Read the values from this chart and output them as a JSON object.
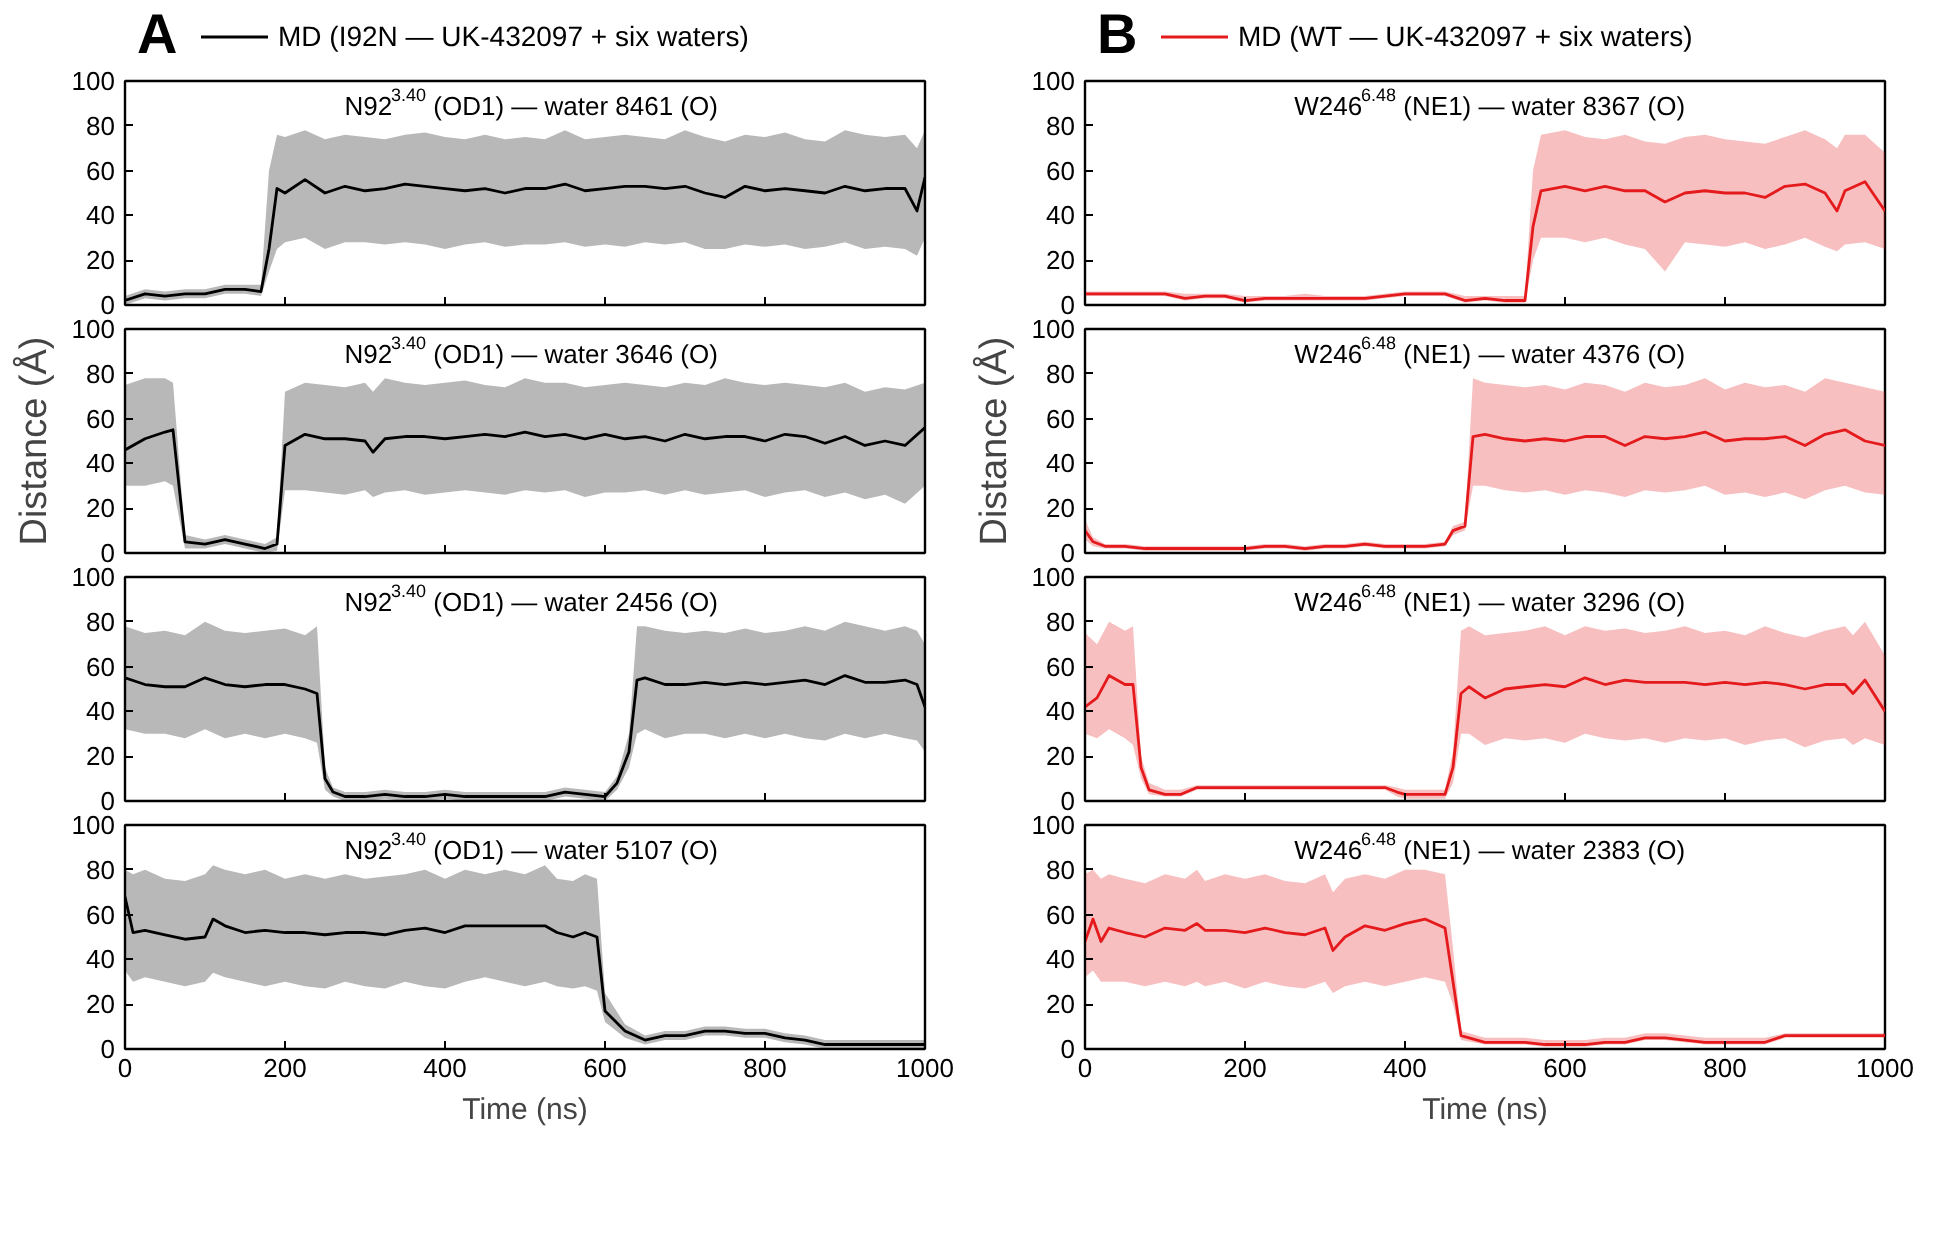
{
  "chart_data": [
    {
      "type": "line",
      "title": "N92$^{3.40}$ (OD1) — water 8461 (O)",
      "annotations": [
        "A"
      ],
      "legend": "top",
      "xlim": [
        0,
        1000
      ],
      "ylim": [
        0,
        100
      ],
      "xticks": [
        0,
        200,
        400,
        600,
        800,
        1000
      ],
      "yticks": [
        0,
        20,
        40,
        60,
        80,
        100
      ],
      "tick_labels": "y",
      "series": [
        {
          "name": "MD (I92N — UK-432097 + six waters)",
          "color": "#000000",
          "x": [
            0,
            25,
            50,
            75,
            100,
            125,
            150,
            170,
            180,
            190,
            200,
            225,
            250,
            275,
            300,
            325,
            350,
            375,
            400,
            425,
            450,
            475,
            500,
            525,
            550,
            575,
            600,
            625,
            650,
            675,
            700,
            725,
            750,
            775,
            800,
            825,
            850,
            875,
            900,
            925,
            950,
            975,
            990,
            1000
          ],
          "values": [
            2,
            5,
            4,
            5,
            5,
            7,
            7,
            6,
            25,
            52,
            50,
            56,
            50,
            53,
            51,
            52,
            54,
            53,
            52,
            51,
            52,
            50,
            52,
            52,
            54,
            51,
            52,
            53,
            53,
            52,
            53,
            50,
            48,
            53,
            51,
            52,
            51,
            50,
            53,
            51,
            52,
            52,
            42,
            57
          ],
          "lower": [
            0,
            3,
            2,
            3,
            3,
            5,
            5,
            4,
            15,
            25,
            28,
            30,
            25,
            28,
            28,
            27,
            28,
            27,
            25,
            27,
            28,
            26,
            27,
            27,
            28,
            26,
            27,
            26,
            28,
            27,
            28,
            25,
            25,
            27,
            26,
            27,
            25,
            26,
            28,
            25,
            26,
            25,
            22,
            30
          ],
          "upper": [
            4,
            7,
            6,
            7,
            7,
            9,
            9,
            9,
            60,
            76,
            75,
            78,
            74,
            76,
            75,
            74,
            76,
            77,
            75,
            74,
            76,
            74,
            75,
            74,
            78,
            74,
            75,
            76,
            75,
            74,
            78,
            75,
            73,
            76,
            75,
            77,
            74,
            73,
            78,
            76,
            75,
            76,
            70,
            78
          ]
        }
      ]
    },
    {
      "type": "line",
      "title": "N92$^{3.40}$ (OD1) — water 3646 (O)",
      "ylabel": "Distance (Å)",
      "xlim": [
        0,
        1000
      ],
      "ylim": [
        0,
        100
      ],
      "xticks": [
        0,
        200,
        400,
        600,
        800,
        1000
      ],
      "yticks": [
        0,
        20,
        40,
        60,
        80,
        100
      ],
      "tick_labels": "y",
      "series": [
        {
          "color": "#000000",
          "x": [
            0,
            25,
            50,
            60,
            75,
            100,
            125,
            150,
            175,
            190,
            200,
            225,
            250,
            275,
            300,
            310,
            325,
            350,
            375,
            400,
            425,
            450,
            475,
            500,
            525,
            550,
            575,
            600,
            625,
            650,
            675,
            700,
            725,
            750,
            775,
            800,
            825,
            850,
            875,
            900,
            925,
            950,
            975,
            1000
          ],
          "values": [
            46,
            51,
            54,
            55,
            5,
            4,
            6,
            4,
            2,
            4,
            48,
            53,
            51,
            51,
            50,
            45,
            51,
            52,
            52,
            51,
            52,
            53,
            52,
            54,
            52,
            53,
            51,
            53,
            51,
            52,
            50,
            53,
            51,
            52,
            52,
            50,
            53,
            52,
            49,
            52,
            48,
            50,
            48,
            56
          ],
          "lower": [
            30,
            30,
            32,
            30,
            2,
            2,
            4,
            2,
            0,
            1,
            28,
            28,
            27,
            26,
            28,
            25,
            27,
            28,
            26,
            27,
            28,
            27,
            26,
            28,
            27,
            28,
            25,
            27,
            27,
            28,
            26,
            28,
            26,
            27,
            28,
            25,
            27,
            28,
            25,
            27,
            24,
            26,
            22,
            30
          ],
          "upper": [
            75,
            78,
            78,
            76,
            8,
            6,
            8,
            6,
            4,
            7,
            72,
            76,
            75,
            74,
            76,
            72,
            78,
            76,
            75,
            76,
            77,
            75,
            74,
            78,
            76,
            76,
            74,
            75,
            76,
            75,
            74,
            76,
            75,
            78,
            76,
            75,
            76,
            75,
            74,
            76,
            72,
            74,
            73,
            76
          ]
        }
      ]
    },
    {
      "type": "line",
      "title": "N92$^{3.40}$ (OD1) — water 2456 (O)",
      "xlim": [
        0,
        1000
      ],
      "ylim": [
        0,
        100
      ],
      "xticks": [
        0,
        200,
        400,
        600,
        800,
        1000
      ],
      "yticks": [
        0,
        20,
        40,
        60,
        80,
        100
      ],
      "tick_labels": "y",
      "series": [
        {
          "color": "#000000",
          "x": [
            0,
            25,
            50,
            75,
            100,
            125,
            150,
            175,
            200,
            225,
            240,
            250,
            260,
            275,
            300,
            325,
            350,
            375,
            400,
            425,
            450,
            475,
            500,
            525,
            550,
            575,
            600,
            615,
            630,
            640,
            650,
            675,
            700,
            725,
            750,
            775,
            800,
            825,
            850,
            875,
            900,
            925,
            950,
            975,
            990,
            1000
          ],
          "values": [
            55,
            52,
            51,
            51,
            55,
            52,
            51,
            52,
            52,
            50,
            48,
            10,
            4,
            2,
            2,
            3,
            2,
            2,
            3,
            2,
            2,
            2,
            2,
            2,
            4,
            3,
            2,
            8,
            22,
            54,
            55,
            52,
            52,
            53,
            52,
            53,
            52,
            53,
            54,
            52,
            56,
            53,
            53,
            54,
            52,
            42
          ],
          "lower": [
            32,
            30,
            30,
            28,
            32,
            28,
            30,
            28,
            30,
            28,
            26,
            5,
            2,
            0,
            0,
            1,
            0,
            0,
            1,
            0,
            0,
            0,
            0,
            0,
            2,
            1,
            0,
            5,
            15,
            30,
            32,
            28,
            30,
            30,
            28,
            30,
            28,
            30,
            28,
            27,
            30,
            28,
            30,
            28,
            27,
            22
          ],
          "upper": [
            78,
            75,
            76,
            74,
            80,
            76,
            75,
            76,
            77,
            74,
            78,
            15,
            6,
            4,
            4,
            5,
            4,
            4,
            5,
            4,
            4,
            4,
            4,
            4,
            6,
            5,
            4,
            11,
            30,
            78,
            78,
            76,
            75,
            76,
            75,
            77,
            75,
            76,
            78,
            76,
            80,
            78,
            76,
            78,
            76,
            70
          ]
        }
      ]
    },
    {
      "type": "line",
      "title": "N92$^{3.40}$ (OD1) — water 5107 (O)",
      "xlabel": "Time (ns)",
      "xlim": [
        0,
        1000
      ],
      "ylim": [
        0,
        100
      ],
      "xticks": [
        0,
        200,
        400,
        600,
        800,
        1000
      ],
      "yticks": [
        0,
        20,
        40,
        60,
        80,
        100
      ],
      "series": [
        {
          "color": "#000000",
          "x": [
            0,
            10,
            25,
            50,
            75,
            100,
            110,
            125,
            150,
            175,
            200,
            225,
            250,
            275,
            300,
            325,
            350,
            375,
            400,
            425,
            450,
            475,
            500,
            525,
            540,
            560,
            575,
            590,
            600,
            625,
            650,
            675,
            700,
            725,
            750,
            775,
            800,
            825,
            850,
            875,
            900,
            925,
            950,
            975,
            1000
          ],
          "values": [
            68,
            52,
            53,
            51,
            49,
            50,
            58,
            55,
            52,
            53,
            52,
            52,
            51,
            52,
            52,
            51,
            53,
            54,
            52,
            55,
            55,
            55,
            55,
            55,
            52,
            50,
            52,
            50,
            17,
            8,
            4,
            6,
            6,
            8,
            8,
            7,
            7,
            5,
            4,
            2,
            2,
            2,
            2,
            2,
            2
          ],
          "lower": [
            35,
            30,
            32,
            30,
            28,
            30,
            34,
            32,
            30,
            28,
            30,
            28,
            27,
            30,
            28,
            27,
            30,
            28,
            27,
            30,
            32,
            30,
            28,
            30,
            28,
            27,
            28,
            26,
            12,
            5,
            2,
            4,
            4,
            6,
            6,
            5,
            5,
            3,
            2,
            0,
            0,
            0,
            0,
            0,
            0
          ],
          "upper": [
            80,
            78,
            80,
            76,
            75,
            78,
            82,
            80,
            78,
            80,
            76,
            78,
            76,
            78,
            76,
            77,
            78,
            80,
            76,
            80,
            78,
            80,
            78,
            82,
            76,
            75,
            78,
            76,
            25,
            11,
            6,
            8,
            8,
            10,
            10,
            9,
            9,
            7,
            6,
            4,
            4,
            4,
            4,
            4,
            4
          ]
        }
      ]
    },
    {
      "type": "line",
      "title": "W246$^{6.48}$ (NE1) — water 8367 (O)",
      "annotations": [
        "B"
      ],
      "legend": "top",
      "xlim": [
        0,
        1000
      ],
      "ylim": [
        0,
        100
      ],
      "xticks": [
        0,
        200,
        400,
        600,
        800,
        1000
      ],
      "yticks": [
        0,
        20,
        40,
        60,
        80,
        100
      ],
      "tick_labels": "y",
      "series": [
        {
          "name": "MD (WT — UK-432097 + six waters)",
          "color": "#e41a1c",
          "x": [
            0,
            25,
            50,
            75,
            100,
            125,
            150,
            175,
            200,
            225,
            250,
            275,
            300,
            325,
            350,
            375,
            400,
            425,
            450,
            475,
            500,
            525,
            550,
            560,
            570,
            600,
            625,
            650,
            675,
            700,
            725,
            750,
            775,
            800,
            825,
            850,
            875,
            900,
            925,
            940,
            950,
            975,
            1000
          ],
          "values": [
            5,
            5,
            5,
            5,
            5,
            3,
            4,
            4,
            2,
            3,
            3,
            3,
            3,
            3,
            3,
            4,
            5,
            5,
            5,
            2,
            3,
            2,
            2,
            35,
            51,
            53,
            51,
            53,
            51,
            51,
            46,
            50,
            51,
            50,
            50,
            48,
            53,
            54,
            50,
            42,
            51,
            55,
            42
          ],
          "lower": [
            4,
            4,
            4,
            4,
            4,
            2,
            3,
            3,
            1,
            2,
            2,
            2,
            2,
            2,
            2,
            3,
            4,
            4,
            4,
            1,
            2,
            1,
            1,
            20,
            30,
            30,
            28,
            30,
            27,
            25,
            15,
            28,
            27,
            26,
            28,
            25,
            27,
            30,
            26,
            24,
            27,
            28,
            25
          ],
          "upper": [
            6,
            6,
            6,
            6,
            6,
            5,
            5,
            5,
            4,
            4,
            4,
            5,
            4,
            4,
            4,
            5,
            6,
            6,
            6,
            4,
            4,
            4,
            4,
            60,
            76,
            78,
            75,
            74,
            76,
            73,
            72,
            75,
            76,
            74,
            73,
            72,
            75,
            78,
            74,
            70,
            76,
            76,
            68
          ]
        }
      ]
    },
    {
      "type": "line",
      "title": "W246$^{6.48}$ (NE1) — water 4376 (O)",
      "ylabel": "Distance (Å)",
      "xlim": [
        0,
        1000
      ],
      "ylim": [
        0,
        100
      ],
      "xticks": [
        0,
        200,
        400,
        600,
        800,
        1000
      ],
      "yticks": [
        0,
        20,
        40,
        60,
        80,
        100
      ],
      "tick_labels": "y",
      "series": [
        {
          "color": "#e41a1c",
          "x": [
            0,
            10,
            25,
            50,
            75,
            100,
            125,
            150,
            175,
            200,
            225,
            250,
            275,
            300,
            325,
            350,
            375,
            400,
            425,
            450,
            460,
            475,
            485,
            500,
            525,
            550,
            575,
            600,
            625,
            650,
            675,
            700,
            725,
            750,
            775,
            800,
            825,
            850,
            875,
            900,
            925,
            950,
            975,
            1000
          ],
          "values": [
            10,
            5,
            3,
            3,
            2,
            2,
            2,
            2,
            2,
            2,
            3,
            3,
            2,
            3,
            3,
            4,
            3,
            3,
            3,
            4,
            10,
            12,
            52,
            53,
            51,
            50,
            51,
            50,
            52,
            52,
            48,
            52,
            51,
            52,
            54,
            50,
            51,
            51,
            52,
            48,
            53,
            55,
            50,
            48
          ],
          "lower": [
            6,
            3,
            2,
            2,
            1,
            1,
            1,
            1,
            1,
            1,
            2,
            2,
            1,
            2,
            2,
            3,
            2,
            2,
            2,
            3,
            8,
            10,
            30,
            30,
            28,
            27,
            28,
            26,
            28,
            27,
            25,
            28,
            27,
            28,
            30,
            26,
            27,
            25,
            27,
            24,
            28,
            30,
            27,
            26
          ],
          "upper": [
            15,
            7,
            4,
            4,
            3,
            3,
            3,
            3,
            3,
            3,
            4,
            4,
            3,
            4,
            4,
            5,
            4,
            4,
            4,
            5,
            12,
            14,
            78,
            76,
            75,
            74,
            75,
            73,
            76,
            75,
            72,
            76,
            74,
            75,
            78,
            73,
            76,
            74,
            75,
            72,
            78,
            76,
            74,
            72
          ]
        }
      ]
    },
    {
      "type": "line",
      "title": "W246$^{6.48}$ (NE1) — water 3296 (O)",
      "xlim": [
        0,
        1000
      ],
      "ylim": [
        0,
        100
      ],
      "xticks": [
        0,
        200,
        400,
        600,
        800,
        1000
      ],
      "yticks": [
        0,
        20,
        40,
        60,
        80,
        100
      ],
      "tick_labels": "y",
      "series": [
        {
          "color": "#e41a1c",
          "x": [
            0,
            15,
            30,
            50,
            60,
            70,
            80,
            100,
            120,
            140,
            175,
            200,
            250,
            300,
            350,
            375,
            390,
            400,
            425,
            450,
            460,
            470,
            480,
            500,
            525,
            550,
            575,
            600,
            625,
            650,
            675,
            700,
            725,
            750,
            775,
            800,
            825,
            850,
            875,
            900,
            925,
            950,
            960,
            975,
            1000
          ],
          "values": [
            42,
            46,
            56,
            52,
            52,
            15,
            5,
            3,
            3,
            6,
            6,
            6,
            6,
            6,
            6,
            6,
            4,
            3,
            3,
            3,
            15,
            48,
            51,
            46,
            50,
            51,
            52,
            51,
            55,
            52,
            54,
            53,
            53,
            53,
            52,
            53,
            52,
            53,
            52,
            50,
            52,
            52,
            48,
            54,
            40
          ],
          "lower": [
            30,
            28,
            32,
            28,
            25,
            10,
            3,
            2,
            2,
            5,
            5,
            5,
            5,
            5,
            5,
            5,
            2,
            1,
            1,
            1,
            8,
            30,
            30,
            25,
            28,
            27,
            28,
            26,
            30,
            28,
            27,
            28,
            26,
            28,
            27,
            28,
            25,
            27,
            28,
            24,
            27,
            28,
            25,
            28,
            25
          ],
          "upper": [
            75,
            70,
            80,
            76,
            78,
            20,
            8,
            5,
            5,
            7,
            7,
            7,
            7,
            7,
            7,
            7,
            6,
            5,
            5,
            5,
            22,
            76,
            78,
            74,
            75,
            76,
            78,
            74,
            78,
            76,
            77,
            75,
            76,
            78,
            75,
            76,
            74,
            78,
            75,
            73,
            76,
            78,
            74,
            80,
            65
          ]
        }
      ]
    },
    {
      "type": "line",
      "title": "W246$^{6.48}$ (NE1) — water 2383 (O)",
      "xlabel": "Time (ns)",
      "xlim": [
        0,
        1000
      ],
      "ylim": [
        0,
        100
      ],
      "xticks": [
        0,
        200,
        400,
        600,
        800,
        1000
      ],
      "yticks": [
        0,
        20,
        40,
        60,
        80,
        100
      ],
      "series": [
        {
          "color": "#e41a1c",
          "x": [
            0,
            10,
            20,
            30,
            50,
            75,
            100,
            125,
            140,
            150,
            175,
            200,
            225,
            250,
            275,
            300,
            310,
            325,
            350,
            375,
            400,
            425,
            450,
            460,
            470,
            500,
            525,
            550,
            575,
            600,
            625,
            650,
            675,
            700,
            725,
            750,
            775,
            800,
            825,
            850,
            875,
            900,
            950,
            1000
          ],
          "values": [
            48,
            58,
            48,
            54,
            52,
            50,
            54,
            53,
            56,
            53,
            53,
            52,
            54,
            52,
            51,
            54,
            44,
            50,
            55,
            53,
            56,
            58,
            54,
            30,
            6,
            3,
            3,
            3,
            2,
            2,
            2,
            3,
            3,
            5,
            5,
            4,
            3,
            3,
            3,
            3,
            6,
            6,
            6,
            6
          ],
          "lower": [
            32,
            35,
            30,
            30,
            30,
            28,
            30,
            28,
            30,
            28,
            30,
            27,
            30,
            28,
            27,
            30,
            25,
            28,
            30,
            28,
            30,
            32,
            30,
            20,
            4,
            2,
            2,
            2,
            1,
            1,
            1,
            2,
            2,
            4,
            4,
            3,
            2,
            2,
            2,
            2,
            5,
            5,
            5,
            5
          ],
          "upper": [
            78,
            80,
            76,
            78,
            76,
            74,
            78,
            76,
            80,
            75,
            78,
            76,
            78,
            75,
            74,
            78,
            70,
            76,
            78,
            76,
            80,
            80,
            78,
            45,
            8,
            5,
            5,
            5,
            4,
            4,
            4,
            5,
            5,
            7,
            7,
            6,
            5,
            5,
            5,
            5,
            7,
            7,
            7,
            7
          ]
        }
      ]
    }
  ]
}
